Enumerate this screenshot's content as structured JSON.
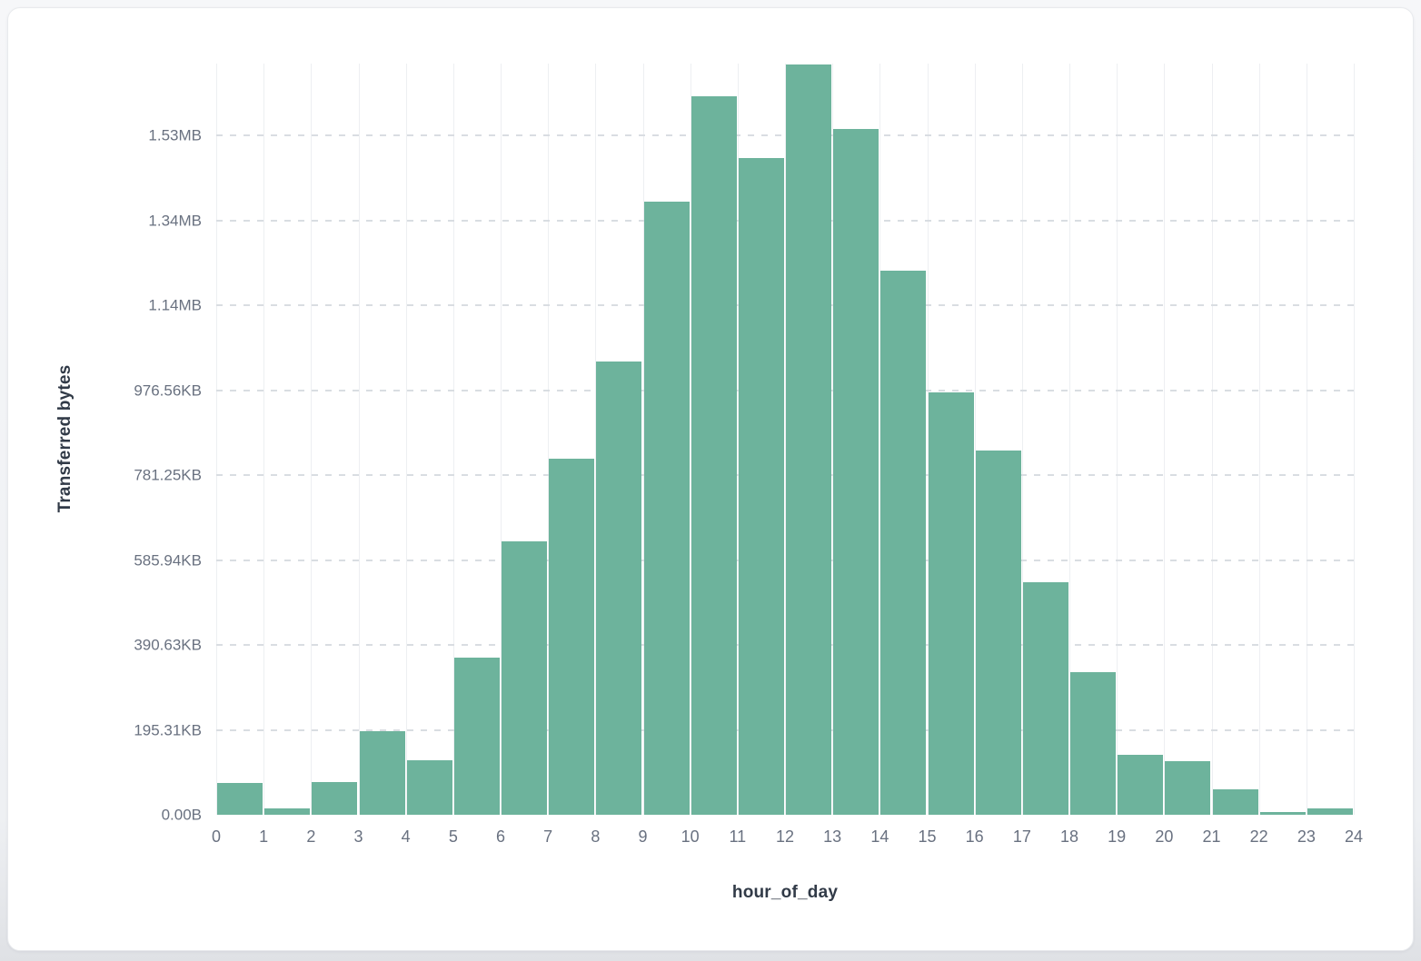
{
  "chart_data": {
    "type": "bar",
    "subtype": "histogram",
    "title": "",
    "xlabel": "hour_of_day",
    "ylabel": "Transferred bytes",
    "x_bin_edges": [
      0,
      1,
      2,
      3,
      4,
      5,
      6,
      7,
      8,
      9,
      10,
      11,
      12,
      13,
      14,
      15,
      16,
      17,
      18,
      19,
      20,
      21,
      22,
      23,
      24
    ],
    "x_tick_labels": [
      "0",
      "1",
      "2",
      "3",
      "4",
      "5",
      "6",
      "7",
      "8",
      "9",
      "10",
      "11",
      "12",
      "13",
      "14",
      "15",
      "16",
      "17",
      "18",
      "19",
      "20",
      "21",
      "22",
      "23",
      "24"
    ],
    "values_bytes": [
      75000,
      16000,
      78000,
      196000,
      128000,
      371000,
      644000,
      840000,
      1068000,
      1445000,
      1693000,
      1548000,
      1768000,
      1615000,
      1281000,
      996000,
      858000,
      547000,
      337000,
      141000,
      126000,
      59000,
      6000,
      16000
    ],
    "y_ticks": [
      {
        "value": 0,
        "label": "0.00B"
      },
      {
        "value": 200000,
        "label": "195.31KB"
      },
      {
        "value": 400000,
        "label": "390.63KB"
      },
      {
        "value": 600000,
        "label": "585.94KB"
      },
      {
        "value": 800000,
        "label": "781.25KB"
      },
      {
        "value": 1000000,
        "label": "976.56KB"
      },
      {
        "value": 1200000,
        "label": "1.14MB"
      },
      {
        "value": 1400000,
        "label": "1.34MB"
      },
      {
        "value": 1600000,
        "label": "1.53MB"
      }
    ],
    "ylim": [
      0,
      1770000
    ],
    "xlim": [
      0,
      24
    ],
    "grid": {
      "vertical": "solid",
      "horizontal": "dashed"
    },
    "legend": "none",
    "colors": {
      "bar": "#6db39c",
      "bar_gap": "#ffffff",
      "tick_label": "#697180",
      "axis_title": "#313a47",
      "vgrid": "#edeff2",
      "hgrid": "#d9dde2",
      "card_bg": "#ffffff",
      "page_bg": "#eef0f3"
    }
  }
}
